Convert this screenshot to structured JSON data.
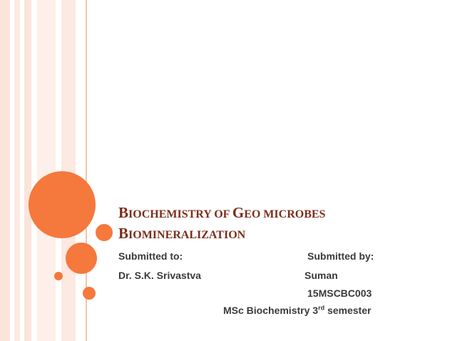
{
  "title": {
    "line1": {
      "w1_cap": "B",
      "w1_rest": "IOCHEMISTRY OF ",
      "w2_cap": "G",
      "w2_rest": "EO MICROBES"
    },
    "line2": {
      "w1_cap": "B",
      "w1_rest": "IOMINERALIZATION"
    }
  },
  "submitted_to": {
    "label": "Submitted to:",
    "name": "Dr. S.K. Srivastva"
  },
  "submitted_by": {
    "label": "Submitted by:",
    "name": "Suman",
    "roll": "15MSCBC003",
    "course_prefix": "MSc  Biochemistry 3",
    "course_sup": "rd",
    "course_suffix": " semester"
  },
  "colors": {
    "accent": "#f5783c",
    "title": "#7a2e1c",
    "text": "#3a3a3a"
  }
}
